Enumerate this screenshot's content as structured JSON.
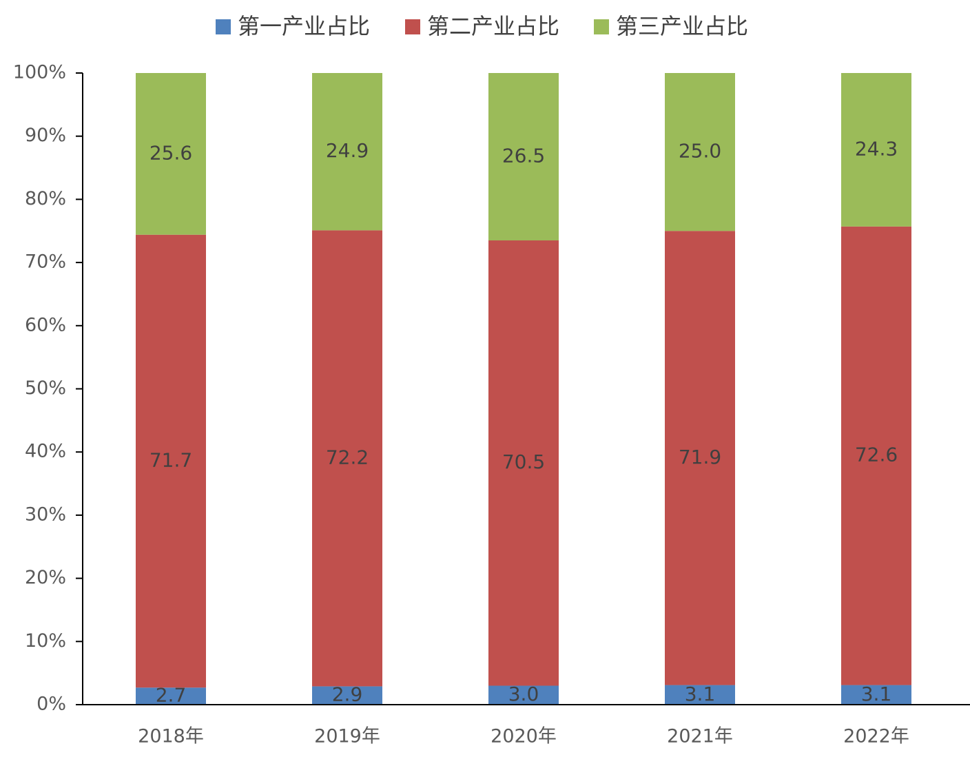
{
  "chart_data": {
    "type": "stacked_bar",
    "categories": [
      "2018年",
      "2019年",
      "2020年",
      "2021年",
      "2022年"
    ],
    "series": [
      {
        "name": "第一产业占比",
        "color": "#4f81bd",
        "values": [
          2.7,
          2.9,
          3.0,
          3.1,
          3.1
        ],
        "value_labels": [
          "2.7",
          "2.9",
          "3.0",
          "3.1",
          "3.1"
        ]
      },
      {
        "name": "第二产业占比",
        "color": "#c0504d",
        "values": [
          71.7,
          72.2,
          70.5,
          71.9,
          72.6
        ],
        "value_labels": [
          "71.7",
          "72.2",
          "70.5",
          "71.9",
          "72.6"
        ]
      },
      {
        "name": "第三产业占比",
        "color": "#9bbb59",
        "values": [
          25.6,
          24.9,
          26.5,
          25.0,
          24.3
        ],
        "value_labels": [
          "25.6",
          "24.9",
          "26.5",
          "25.0",
          "24.3"
        ]
      }
    ],
    "ylim": [
      0,
      100
    ],
    "yticks": [
      {
        "value": 0,
        "label": "0%"
      },
      {
        "value": 10,
        "label": "10%"
      },
      {
        "value": 20,
        "label": "20%"
      },
      {
        "value": 30,
        "label": "30%"
      },
      {
        "value": 40,
        "label": "40%"
      },
      {
        "value": 50,
        "label": "50%"
      },
      {
        "value": 60,
        "label": "60%"
      },
      {
        "value": 70,
        "label": "70%"
      },
      {
        "value": 80,
        "label": "80%"
      },
      {
        "value": 90,
        "label": "90%"
      },
      {
        "value": 100,
        "label": "100%"
      }
    ],
    "grid": false,
    "legend": "top"
  }
}
